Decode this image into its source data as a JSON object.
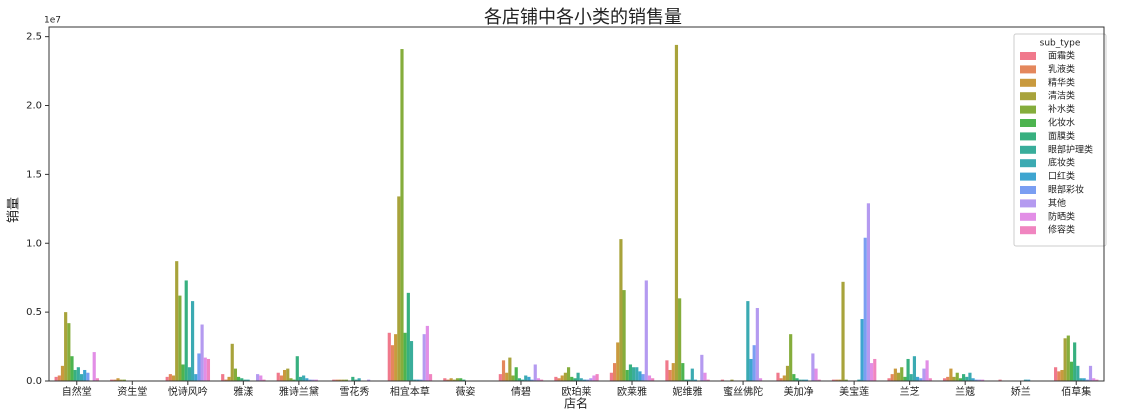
{
  "chart_data": {
    "type": "bar",
    "title": "各店铺中各小类的销售量",
    "xlabel": "店名",
    "ylabel": "销量",
    "y_offset_label": "1e7",
    "legend_title": "sub_type",
    "legend_position": "upper right",
    "categories": [
      "自然堂",
      "资生堂",
      "悦诗风吟",
      "雅漾",
      "雅诗兰黛",
      "雪花秀",
      "相宜本草",
      "薇姿",
      "倩碧",
      "欧珀莱",
      "欧莱雅",
      "妮维雅",
      "蜜丝佛陀",
      "美加净",
      "美宝莲",
      "兰芝",
      "兰蔻",
      "娇兰",
      "佰草集"
    ],
    "ylim": [
      0,
      2.57
    ],
    "yticks": [
      {
        "value": 0,
        "label": "0.0"
      },
      0.5,
      {
        "value": 1,
        "label": "1.0"
      },
      1.5,
      {
        "value": 2,
        "label": "2.0"
      },
      2.5
    ],
    "series": [
      {
        "name": "面霜类",
        "color": "#f0798c",
        "values": [
          0.03,
          0.01,
          0.03,
          0.05,
          0.06,
          0.01,
          0.35,
          0.02,
          0.05,
          0.03,
          0.06,
          0.15,
          0.01,
          0.06,
          0.01,
          0.02,
          0.02,
          0.01,
          0.1
        ]
      },
      {
        "name": "乳液类",
        "color": "#e4875c",
        "values": [
          0.04,
          0.01,
          0.05,
          0.01,
          0.04,
          0.01,
          0.26,
          0.01,
          0.15,
          0.02,
          0.13,
          0.08,
          0,
          0.02,
          0.01,
          0.05,
          0.03,
          0,
          0.07
        ]
      },
      {
        "name": "精华类",
        "color": "#c99a3e",
        "values": [
          0.11,
          0.02,
          0.04,
          0.03,
          0.08,
          0.01,
          0.34,
          0.02,
          0.06,
          0.04,
          0.28,
          0.13,
          0,
          0.04,
          0.01,
          0.09,
          0.09,
          0,
          0.08
        ]
      },
      {
        "name": "清洁类",
        "color": "#a8a33b",
        "values": [
          0.5,
          0.01,
          0.87,
          0.27,
          0.09,
          0.01,
          1.34,
          0.01,
          0.17,
          0.06,
          1.03,
          2.44,
          0.01,
          0.11,
          0.72,
          0.06,
          0.03,
          0,
          0.31
        ]
      },
      {
        "name": "补水类",
        "color": "#85ad3c",
        "values": [
          0.42,
          0.01,
          0.62,
          0.09,
          0.02,
          0.01,
          2.41,
          0.02,
          0.04,
          0.1,
          0.66,
          0.6,
          0,
          0.34,
          0.01,
          0.1,
          0.06,
          0,
          0.33
        ]
      },
      {
        "name": "化妆水",
        "color": "#4db44f",
        "values": [
          0.18,
          0,
          0.12,
          0.03,
          0.01,
          0,
          0.35,
          0.02,
          0.1,
          0.03,
          0.08,
          0.13,
          0,
          0.05,
          0,
          0.03,
          0.02,
          0,
          0.14
        ]
      },
      {
        "name": "面膜类",
        "color": "#37b07f",
        "values": [
          0.08,
          0,
          0.73,
          0.02,
          0.18,
          0.03,
          0.64,
          0.01,
          0.02,
          0.02,
          0.12,
          0.01,
          0,
          0.02,
          0,
          0.16,
          0.05,
          0,
          0.28
        ]
      },
      {
        "name": "眼部护理类",
        "color": "#39ad9b",
        "values": [
          0.1,
          0,
          0.1,
          0.01,
          0.03,
          0.01,
          0.29,
          0,
          0.01,
          0.06,
          0.1,
          0.01,
          0,
          0.01,
          0,
          0.05,
          0.03,
          0,
          0.11
        ]
      },
      {
        "name": "底妆类",
        "color": "#3baab2",
        "values": [
          0.05,
          0,
          0.58,
          0.01,
          0.04,
          0.02,
          0.01,
          0,
          0.04,
          0.02,
          0.1,
          0.09,
          0.58,
          0.01,
          0.01,
          0.18,
          0.06,
          0.01,
          0.02
        ]
      },
      {
        "name": "口红类",
        "color": "#3ea5d0",
        "values": [
          0.08,
          0,
          0.05,
          0,
          0.02,
          0,
          0.01,
          0,
          0.03,
          0.01,
          0.07,
          0.01,
          0.16,
          0.01,
          0.45,
          0.03,
          0.02,
          0.01,
          0.02
        ]
      },
      {
        "name": "眼部彩妆",
        "color": "#7a9ef2",
        "values": [
          0.06,
          0,
          0.2,
          0,
          0.01,
          0,
          0.01,
          0,
          0.01,
          0.01,
          0.05,
          0,
          0.26,
          0,
          1.04,
          0.02,
          0.01,
          0,
          0.01
        ]
      },
      {
        "name": "其他",
        "color": "#b49af0",
        "values": [
          0,
          0,
          0.41,
          0.05,
          0.01,
          0.01,
          0.34,
          0,
          0.12,
          0.02,
          0.73,
          0.19,
          0.53,
          0.2,
          1.29,
          0.09,
          0.01,
          0,
          0.11
        ]
      },
      {
        "name": "防晒类",
        "color": "#e28ee6",
        "values": [
          0.21,
          0,
          0.17,
          0.04,
          0.01,
          0,
          0.4,
          0,
          0.02,
          0.04,
          0.04,
          0.06,
          0.02,
          0.09,
          0.13,
          0.15,
          0.01,
          0,
          0.02
        ]
      },
      {
        "name": "修容类",
        "color": "#f085c0",
        "values": [
          0.02,
          0,
          0.16,
          0.01,
          0,
          0,
          0.05,
          0,
          0.01,
          0.05,
          0.02,
          0.01,
          0,
          0.01,
          0.16,
          0.02,
          0,
          0,
          0.01
        ]
      }
    ]
  }
}
